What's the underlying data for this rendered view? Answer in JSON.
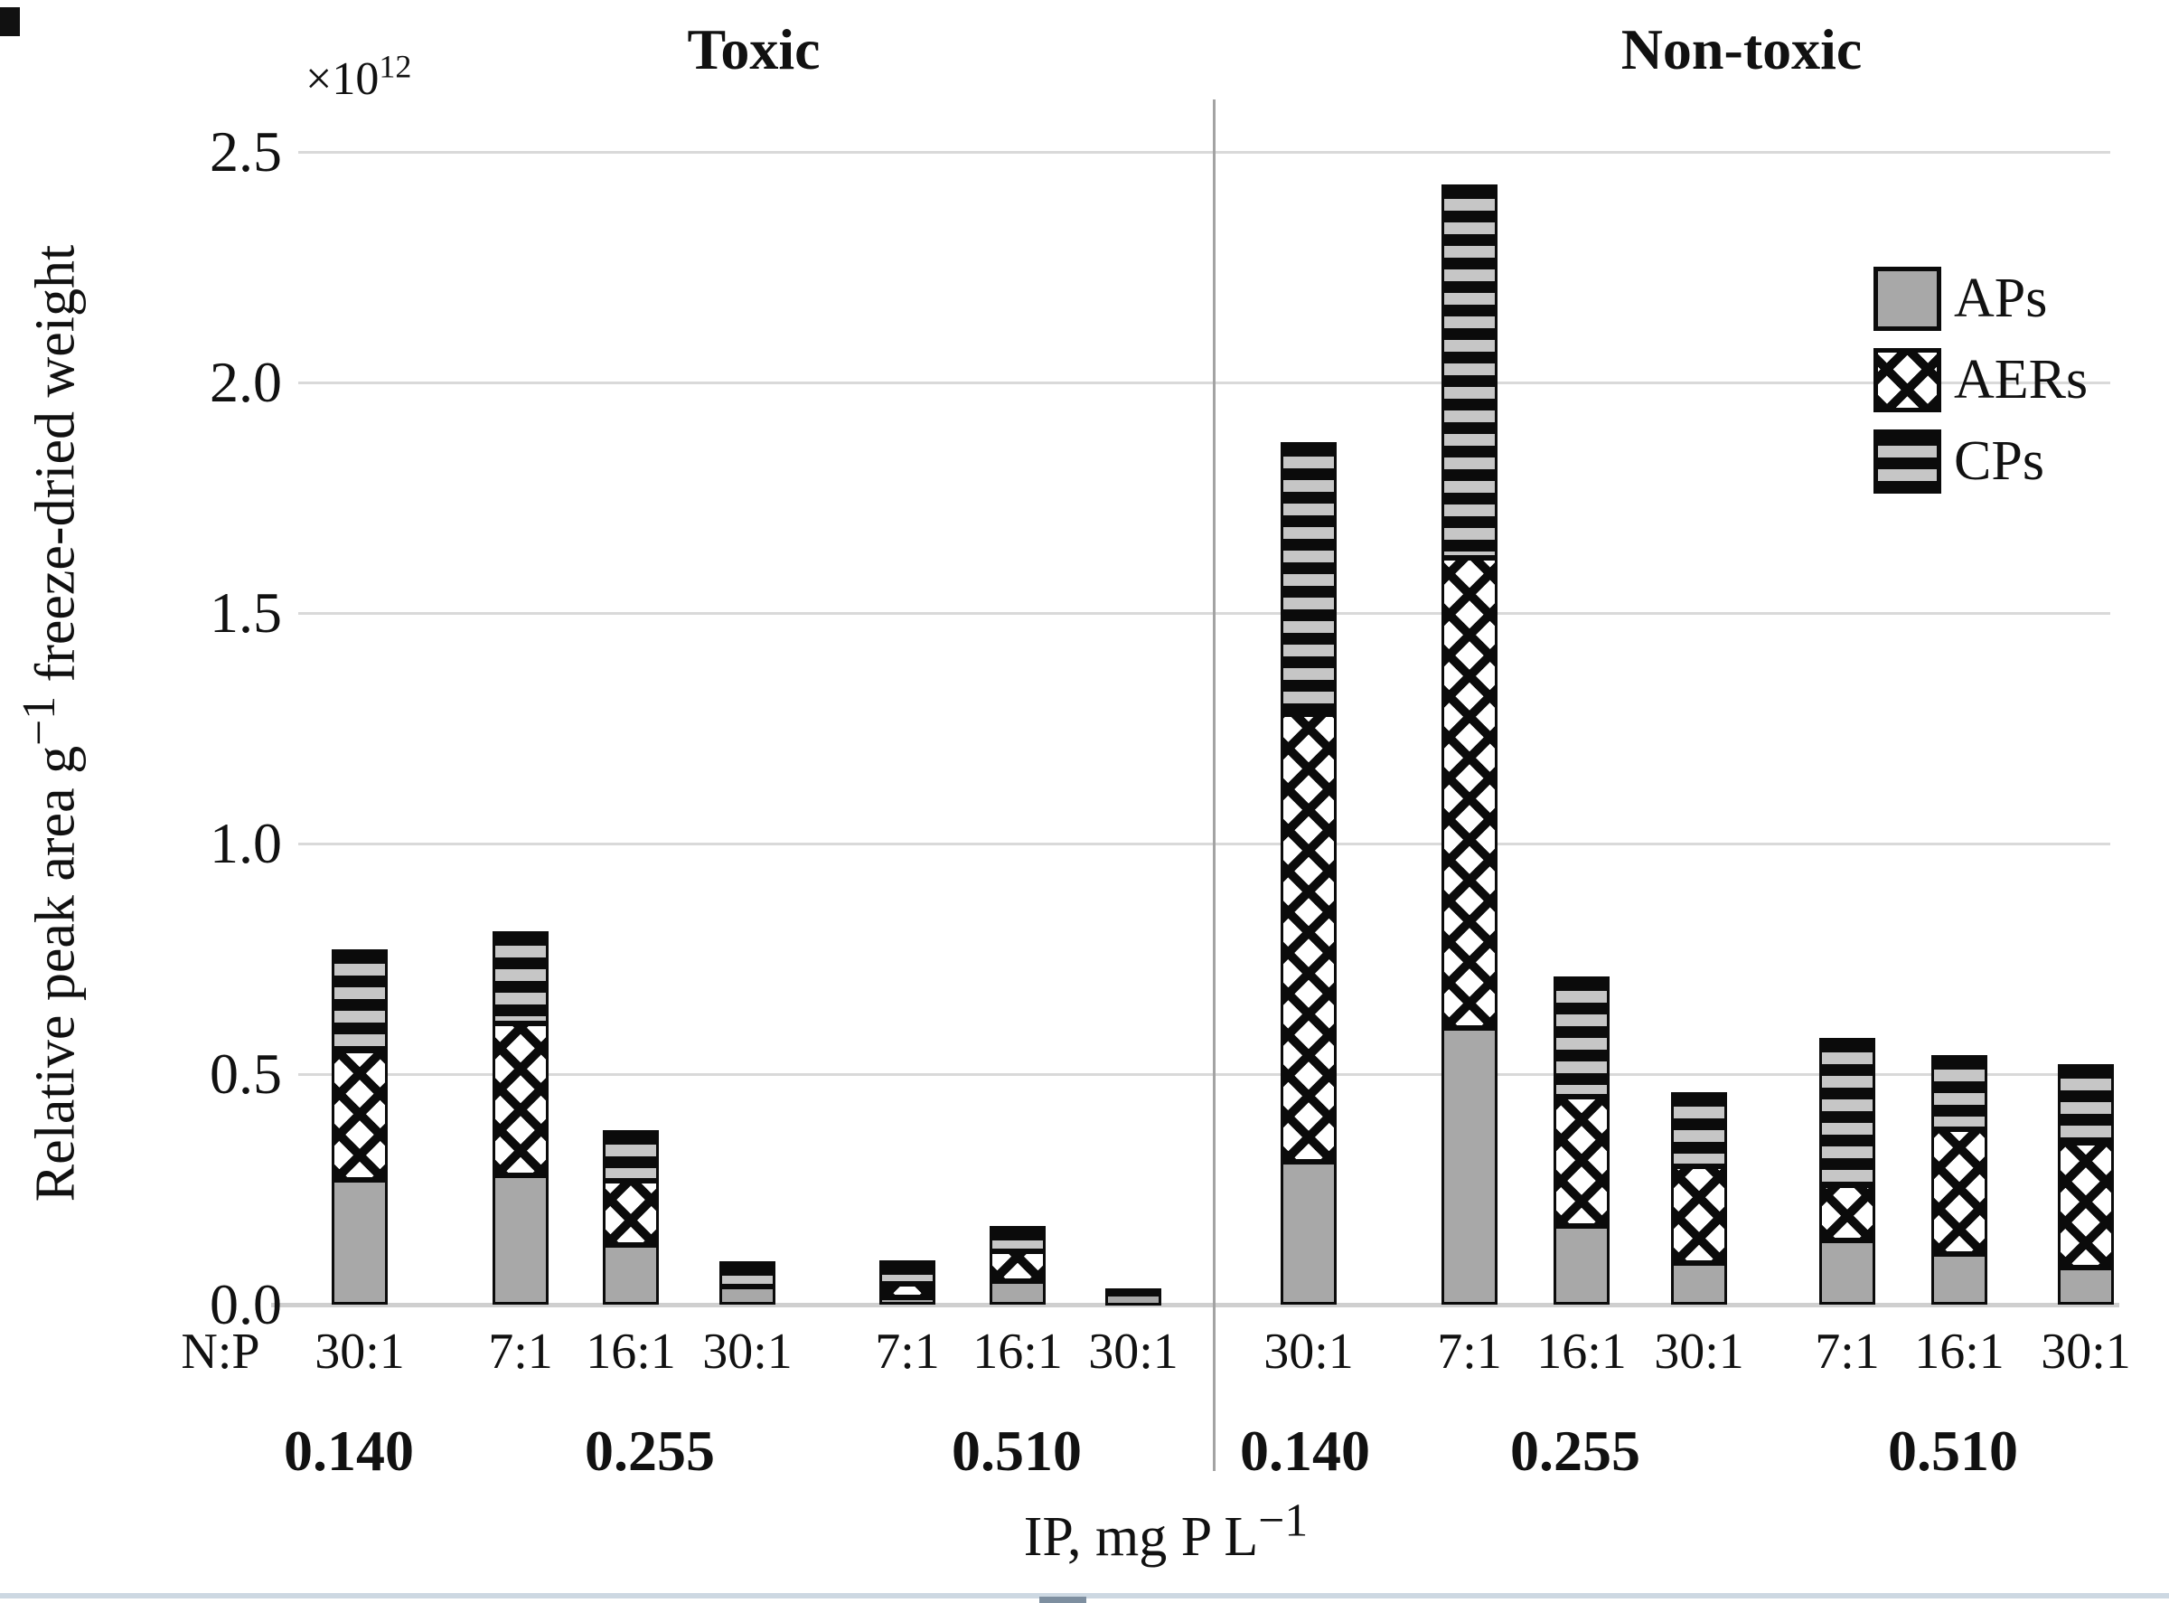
{
  "header": {
    "panel_titles": [
      "Toxic",
      "Non-toxic"
    ]
  },
  "y_axis": {
    "scale_prefix": "×10",
    "scale_exp": "12",
    "label_pre": "Relative peak area g",
    "label_sup": "−1",
    "label_post": " freeze-dried weight",
    "ticks": [
      "2.5",
      "2.0",
      "1.5",
      "1.0",
      "0.5",
      "0.0"
    ]
  },
  "x_axis": {
    "row_label": "N:P",
    "ip_labels": [
      "0.140",
      "0.255",
      "0.510",
      "0.140",
      "0.255",
      "0.510"
    ],
    "title_pre": "IP, mg P L",
    "title_sup": "−1"
  },
  "legend": {
    "items": [
      {
        "label": "APs",
        "pattern": "solid"
      },
      {
        "label": "AERs",
        "pattern": "crosshatch"
      },
      {
        "label": "CPs",
        "pattern": "stripes"
      }
    ]
  },
  "colors": {
    "bar_gray": "#a8a8a8",
    "stripe_light": "#c6c6c6",
    "crosshatch_black": "#0b0b0b",
    "gridline": "#d9d9d9",
    "divider": "#a3a3a3",
    "text": "#111111"
  },
  "chart_data": {
    "type": "bar",
    "stacked": true,
    "title": "",
    "xlabel": "IP, mg P L−1",
    "ylabel": "Relative peak area g−1 freeze-dried weight",
    "value_scale": "×10^12",
    "ylim": [
      0,
      2.5
    ],
    "ytick_values": [
      0.0,
      0.5,
      1.0,
      1.5,
      2.0,
      2.5
    ],
    "grid": true,
    "legend_position": "upper right",
    "series_order": [
      "APs",
      "AERs",
      "CPs"
    ],
    "bars": [
      {
        "panel": "Toxic",
        "ip": "0.140",
        "np": "30:1",
        "APs": 0.27,
        "AERs": 0.28,
        "CPs": 0.22,
        "total": 0.77
      },
      {
        "panel": "Toxic",
        "ip": "0.255",
        "np": "7:1",
        "APs": 0.28,
        "AERs": 0.33,
        "CPs": 0.2,
        "total": 0.81
      },
      {
        "panel": "Toxic",
        "ip": "0.255",
        "np": "16:1",
        "APs": 0.13,
        "AERs": 0.14,
        "CPs": 0.11,
        "total": 0.38
      },
      {
        "panel": "Toxic",
        "ip": "0.255",
        "np": "30:1",
        "APs": 0.04,
        "AERs": 0.0,
        "CPs": 0.055,
        "total": 0.095
      },
      {
        "panel": "Toxic",
        "ip": "0.510",
        "np": "7:1",
        "APs": 0.015,
        "AERs": 0.03,
        "CPs": 0.05,
        "total": 0.095
      },
      {
        "panel": "Toxic",
        "ip": "0.510",
        "np": "16:1",
        "APs": 0.05,
        "AERs": 0.065,
        "CPs": 0.055,
        "total": 0.17
      },
      {
        "panel": "Toxic",
        "ip": "0.510",
        "np": "30:1",
        "APs": 0.025,
        "AERs": 0.0,
        "CPs": 0.01,
        "total": 0.035
      },
      {
        "panel": "Non-toxic",
        "ip": "0.140",
        "np": "30:1",
        "APs": 0.31,
        "AERs": 0.97,
        "CPs": 0.59,
        "total": 1.87
      },
      {
        "panel": "Non-toxic",
        "ip": "0.255",
        "np": "7:1",
        "APs": 0.6,
        "AERs": 1.02,
        "CPs": 0.81,
        "total": 2.43
      },
      {
        "panel": "Non-toxic",
        "ip": "0.255",
        "np": "16:1",
        "APs": 0.17,
        "AERs": 0.28,
        "CPs": 0.26,
        "total": 0.71
      },
      {
        "panel": "Non-toxic",
        "ip": "0.255",
        "np": "30:1",
        "APs": 0.09,
        "AERs": 0.21,
        "CPs": 0.16,
        "total": 0.46
      },
      {
        "panel": "Non-toxic",
        "ip": "0.510",
        "np": "7:1",
        "APs": 0.14,
        "AERs": 0.12,
        "CPs": 0.32,
        "total": 0.58
      },
      {
        "panel": "Non-toxic",
        "ip": "0.510",
        "np": "16:1",
        "APs": 0.11,
        "AERs": 0.27,
        "CPs": 0.16,
        "total": 0.54
      },
      {
        "panel": "Non-toxic",
        "ip": "0.510",
        "np": "30:1",
        "APs": 0.08,
        "AERs": 0.27,
        "CPs": 0.17,
        "total": 0.52
      }
    ]
  }
}
